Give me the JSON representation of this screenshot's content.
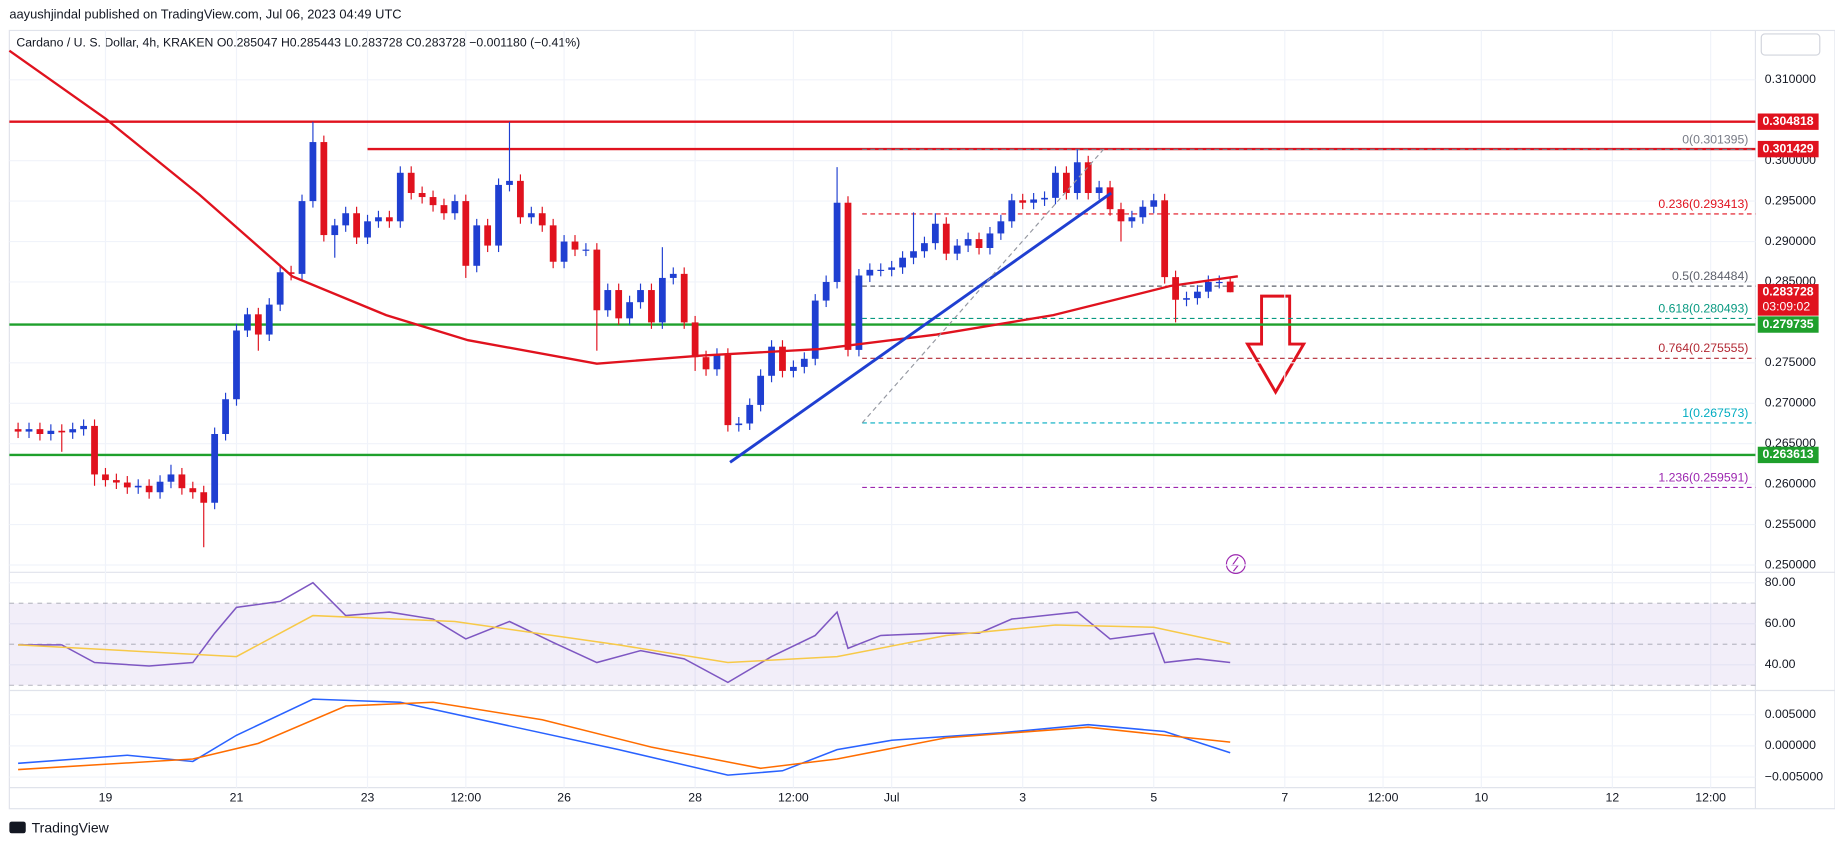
{
  "header": "aayushjindal published on TradingView.com, Jul 06, 2023 04:49 UTC",
  "footer": "TradingView",
  "legend": {
    "symbol": "Cardano / U. S. Dollar, 4h, KRAKEN",
    "ohlc": [
      "O0.285047",
      "H0.285443",
      "L0.283728",
      "C0.283728",
      "−0.001180 (−0.41%)"
    ]
  },
  "chart_data": [
    {
      "type": "candlestick",
      "xlim": [
        -0.8,
        159.1
      ],
      "ylim": [
        0.2491,
        0.3161
      ],
      "grid": true,
      "up_color": "#1f3fd1",
      "down_color": "#e0121e",
      "yticks": [
        {
          "value": 0.31,
          "label": "0.310000"
        },
        {
          "value": 0.3,
          "label": "0.300000"
        },
        {
          "value": 0.295,
          "label": "0.295000"
        },
        {
          "value": 0.29,
          "label": "0.290000"
        },
        {
          "value": 0.285,
          "label": "0.285000"
        },
        {
          "value": 0.275,
          "label": "0.275000"
        },
        {
          "value": 0.27,
          "label": "0.270000"
        },
        {
          "value": 0.265,
          "label": "0.265000"
        },
        {
          "value": 0.26,
          "label": "0.260000"
        },
        {
          "value": 0.255,
          "label": "0.255000"
        },
        {
          "value": 0.25,
          "label": "0.250000"
        }
      ],
      "open": [
        0.2668,
        0.2665,
        0.2668,
        0.2662,
        0.2666,
        0.2664,
        0.2668,
        0.2672,
        0.2612,
        0.2605,
        0.2602,
        0.2596,
        0.2598,
        0.259,
        0.2603,
        0.2612,
        0.2595,
        0.259,
        0.2577,
        0.2662,
        0.2705,
        0.279,
        0.281,
        0.2785,
        0.2822,
        0.2862,
        0.286,
        0.295,
        0.3023,
        0.2908,
        0.292,
        0.2935,
        0.2905,
        0.2925,
        0.293,
        0.2925,
        0.2985,
        0.296,
        0.2955,
        0.2945,
        0.2935,
        0.295,
        0.287,
        0.292,
        0.2895,
        0.297,
        0.2975,
        0.293,
        0.2935,
        0.292,
        0.2875,
        0.29,
        0.289,
        0.289,
        0.2815,
        0.284,
        0.2805,
        0.2825,
        0.284,
        0.28,
        0.2855,
        0.286,
        0.28,
        0.2757,
        0.2742,
        0.276,
        0.2673,
        0.2675,
        0.2698,
        0.2734,
        0.277,
        0.274,
        0.2745,
        0.2755,
        0.2827,
        0.285,
        0.2948,
        0.2766,
        0.2858,
        0.2865,
        0.2865,
        0.2868,
        0.288,
        0.2888,
        0.2898,
        0.2922,
        0.2885,
        0.2895,
        0.2903,
        0.2892,
        0.291,
        0.2925,
        0.2951,
        0.2948,
        0.2952,
        0.2954,
        0.2985,
        0.296,
        0.2998,
        0.296,
        0.2967,
        0.294,
        0.2925,
        0.293,
        0.2943,
        0.2951,
        0.2856,
        0.2828,
        0.283,
        0.2838,
        0.285,
        0.285047
      ],
      "high": [
        0.2676,
        0.2676,
        0.2676,
        0.2674,
        0.2674,
        0.2676,
        0.268,
        0.268,
        0.262,
        0.2613,
        0.261,
        0.2606,
        0.2606,
        0.2611,
        0.2624,
        0.262,
        0.2603,
        0.2598,
        0.267,
        0.2713,
        0.2798,
        0.2818,
        0.2818,
        0.283,
        0.287,
        0.287,
        0.2958,
        0.3048,
        0.3031,
        0.2928,
        0.2943,
        0.2943,
        0.2933,
        0.2938,
        0.2938,
        0.2993,
        0.2993,
        0.2968,
        0.2963,
        0.2953,
        0.2958,
        0.2958,
        0.2928,
        0.2928,
        0.2978,
        0.3048,
        0.2983,
        0.2943,
        0.2943,
        0.2928,
        0.2908,
        0.2908,
        0.2898,
        0.2898,
        0.2848,
        0.2848,
        0.2833,
        0.2848,
        0.2848,
        0.2893,
        0.2868,
        0.2868,
        0.2808,
        0.2765,
        0.2768,
        0.2768,
        0.2683,
        0.2706,
        0.2742,
        0.2778,
        0.2778,
        0.2753,
        0.2763,
        0.2835,
        0.2858,
        0.2992,
        0.2956,
        0.2866,
        0.2873,
        0.2873,
        0.2876,
        0.2888,
        0.2936,
        0.2906,
        0.2935,
        0.293,
        0.2903,
        0.2911,
        0.2911,
        0.2918,
        0.2933,
        0.2959,
        0.2959,
        0.296,
        0.2962,
        0.2993,
        0.2993,
        0.3014,
        0.3006,
        0.2975,
        0.2975,
        0.2948,
        0.2938,
        0.2951,
        0.2959,
        0.2959,
        0.2864,
        0.2838,
        0.2846,
        0.2858,
        0.2858,
        0.285443
      ],
      "low": [
        0.2657,
        0.2657,
        0.2654,
        0.2654,
        0.264,
        0.2656,
        0.266,
        0.2598,
        0.2597,
        0.2594,
        0.2588,
        0.2588,
        0.2582,
        0.2582,
        0.2595,
        0.2587,
        0.2582,
        0.2522,
        0.2569,
        0.2654,
        0.2697,
        0.2782,
        0.2765,
        0.2777,
        0.2814,
        0.2852,
        0.2852,
        0.2942,
        0.29,
        0.288,
        0.2912,
        0.2897,
        0.2897,
        0.2917,
        0.2917,
        0.2917,
        0.2952,
        0.2947,
        0.2937,
        0.2927,
        0.2927,
        0.2855,
        0.2862,
        0.2887,
        0.2887,
        0.2962,
        0.2922,
        0.2922,
        0.2912,
        0.2867,
        0.2867,
        0.2882,
        0.2882,
        0.2765,
        0.2807,
        0.2797,
        0.2797,
        0.2817,
        0.2792,
        0.2792,
        0.2847,
        0.2792,
        0.274,
        0.2734,
        0.2734,
        0.2665,
        0.2665,
        0.2667,
        0.269,
        0.2726,
        0.2732,
        0.2732,
        0.2737,
        0.2747,
        0.2819,
        0.2842,
        0.2758,
        0.2758,
        0.285,
        0.2857,
        0.2857,
        0.286,
        0.2872,
        0.288,
        0.289,
        0.2877,
        0.2877,
        0.2887,
        0.2884,
        0.2884,
        0.2902,
        0.2917,
        0.294,
        0.294,
        0.2944,
        0.2946,
        0.2952,
        0.2952,
        0.2952,
        0.2952,
        0.2932,
        0.29,
        0.2917,
        0.2922,
        0.2935,
        0.2848,
        0.28,
        0.282,
        0.2822,
        0.283,
        0.2842,
        0.283728
      ],
      "close": [
        0.2665,
        0.2668,
        0.2662,
        0.2666,
        0.2664,
        0.2668,
        0.2672,
        0.2612,
        0.2605,
        0.2602,
        0.2596,
        0.2598,
        0.259,
        0.2603,
        0.2612,
        0.2595,
        0.259,
        0.2577,
        0.2662,
        0.2705,
        0.279,
        0.281,
        0.2785,
        0.2822,
        0.2862,
        0.286,
        0.295,
        0.3023,
        0.2908,
        0.292,
        0.2935,
        0.2905,
        0.2925,
        0.293,
        0.2925,
        0.2985,
        0.296,
        0.2955,
        0.2945,
        0.2935,
        0.295,
        0.287,
        0.292,
        0.2895,
        0.297,
        0.2975,
        0.293,
        0.2935,
        0.292,
        0.2875,
        0.29,
        0.289,
        0.289,
        0.2815,
        0.284,
        0.2805,
        0.2825,
        0.284,
        0.28,
        0.2855,
        0.286,
        0.28,
        0.2757,
        0.2742,
        0.276,
        0.2673,
        0.2675,
        0.2698,
        0.2734,
        0.277,
        0.274,
        0.2745,
        0.2755,
        0.2827,
        0.285,
        0.2948,
        0.2766,
        0.2858,
        0.2865,
        0.2865,
        0.2868,
        0.288,
        0.2888,
        0.2898,
        0.2922,
        0.2885,
        0.2895,
        0.2903,
        0.2892,
        0.291,
        0.2925,
        0.2951,
        0.2948,
        0.2952,
        0.2954,
        0.2985,
        0.296,
        0.2998,
        0.296,
        0.2967,
        0.294,
        0.2925,
        0.293,
        0.2943,
        0.2951,
        0.2856,
        0.2828,
        0.283,
        0.2838,
        0.285,
        0.285,
        0.283728
      ],
      "sma": {
        "color": "#e0121e",
        "x": [
          -0.8,
          8,
          16.6,
          25.1,
          33.7,
          41.2,
          53,
          62.6,
          73.4,
          84.1,
          94.8,
          105.5,
          111.7
        ],
        "values": [
          0.3136,
          0.3052,
          0.2958,
          0.2857,
          0.2809,
          0.2778,
          0.2749,
          0.2759,
          0.2767,
          0.2785,
          0.2809,
          0.2845,
          0.2857
        ]
      },
      "levels": [
        {
          "value": 0.304818,
          "color": "#e0121e",
          "from": -0.8
        },
        {
          "value": 0.301429,
          "color": "#e0121e",
          "from": 32
        },
        {
          "value": 0.279735,
          "color": "#1fa02c",
          "from": -0.8
        },
        {
          "value": 0.263613,
          "color": "#1fa02c",
          "from": -0.8
        }
      ],
      "fib_from": 77.3,
      "fib": [
        {
          "label": "0(0.301395)",
          "value": 0.301395,
          "color": "#787b86"
        },
        {
          "label": "0.236(0.293413)",
          "value": 0.293413,
          "color": "#e0121e"
        },
        {
          "label": "0.5(0.284484)",
          "value": 0.284484,
          "color": "#5d606b"
        },
        {
          "label": "0.618(0.280493)",
          "value": 0.280493,
          "color": "#089981"
        },
        {
          "label": "0.764(0.275555)",
          "value": 0.275555,
          "color": "#b22833"
        },
        {
          "label": "1(0.267573)",
          "value": 0.267573,
          "color": "#00acc1"
        },
        {
          "label": "1.236(0.259591)",
          "value": 0.259591,
          "color": "#9c27b0"
        }
      ],
      "lines": [
        {
          "x": [
            65.2,
            100.1
          ],
          "values": [
            0.2627,
            0.296
          ],
          "color": "#1f3fd1",
          "style": "solid"
        },
        {
          "x": [
            77.3,
            99.4
          ],
          "values": [
            0.267573,
            0.301395
          ],
          "color": "#9598a1",
          "style": "dashed"
        }
      ],
      "last": {
        "value": 0.283728,
        "countdown": "03:09:02",
        "color": "#e0121e"
      }
    },
    {
      "type": "line",
      "xlim": [
        -0.8,
        159.1
      ],
      "ylim": [
        28.6,
        85.1
      ],
      "grid": true,
      "bands": [
        70,
        50,
        30
      ],
      "yticks": [
        {
          "value": 80,
          "label": "80.00"
        },
        {
          "value": 60,
          "label": "60.00"
        },
        {
          "value": 40,
          "label": "40.00"
        }
      ],
      "series": [
        {
          "color": "#7e57c2",
          "x": [
            0,
            4,
            7,
            12,
            16,
            18,
            20,
            24,
            27,
            30,
            34,
            38,
            41,
            45,
            49,
            53,
            57,
            61,
            65,
            69,
            73,
            75,
            76,
            79,
            84,
            88,
            91,
            95,
            97,
            100,
            104,
            105,
            108,
            111
          ],
          "values": [
            49.7,
            49.7,
            41.1,
            39.4,
            41.1,
            55.4,
            68,
            70.9,
            80,
            64,
            65.7,
            62.3,
            52.6,
            61.1,
            50.9,
            41.1,
            46.9,
            42.9,
            31.4,
            44,
            54.3,
            65.7,
            48,
            54.3,
            55.4,
            55.4,
            62.3,
            64.6,
            65.7,
            52.6,
            55.4,
            41.1,
            42.9,
            41.1
          ]
        },
        {
          "color": "#f7c948",
          "x": [
            0,
            20,
            27,
            40,
            55,
            65,
            75,
            85,
            95,
            104,
            111
          ],
          "values": [
            49.7,
            44,
            64,
            61.1,
            49.7,
            41.1,
            44,
            54.3,
            59.4,
            58.3,
            50.3
          ]
        }
      ]
    },
    {
      "type": "line",
      "xlim": [
        -0.8,
        159.1
      ],
      "ylim": [
        -0.0067,
        0.0087
      ],
      "grid": true,
      "yticks": [
        {
          "value": 0.005,
          "label": "0.005000"
        },
        {
          "value": 0,
          "label": "0.000000"
        },
        {
          "value": -0.005,
          "label": "−0.005000"
        }
      ],
      "xticks": [
        {
          "value": 8,
          "label": "19"
        },
        {
          "value": 20,
          "label": "21"
        },
        {
          "value": 32,
          "label": "23"
        },
        {
          "value": 41,
          "label": "12:00"
        },
        {
          "value": 50,
          "label": "26"
        },
        {
          "value": 62,
          "label": "28"
        },
        {
          "value": 71,
          "label": "12:00"
        },
        {
          "value": 80,
          "label": "Jul"
        },
        {
          "value": 92,
          "label": "3"
        },
        {
          "value": 104,
          "label": "5"
        },
        {
          "value": 116,
          "label": "7"
        },
        {
          "value": 125,
          "label": "12:00"
        },
        {
          "value": 134,
          "label": "10"
        },
        {
          "value": 146,
          "label": "12"
        },
        {
          "value": 155,
          "label": "12:00"
        }
      ],
      "series": [
        {
          "color": "#2962ff",
          "x": [
            0,
            10,
            16,
            20,
            27,
            35,
            45,
            55,
            65,
            70,
            75,
            80,
            90,
            98,
            105,
            111
          ],
          "values": [
            -0.0028,
            -0.0015,
            -0.0025,
            0.0017,
            0.0075,
            0.007,
            0.0032,
            -0.0006,
            -0.0047,
            -0.004,
            -0.0006,
            0.0009,
            0.0021,
            0.0034,
            0.0023,
            -0.0011
          ]
        },
        {
          "color": "#ff6d00",
          "x": [
            0,
            16,
            22,
            30,
            38,
            48,
            58,
            68,
            75,
            85,
            98,
            111
          ],
          "values": [
            -0.0038,
            -0.0021,
            0.0004,
            0.0064,
            0.007,
            0.0042,
            -0.0002,
            -0.0036,
            -0.0021,
            0.0013,
            0.003,
            0.0006
          ]
        }
      ]
    }
  ]
}
